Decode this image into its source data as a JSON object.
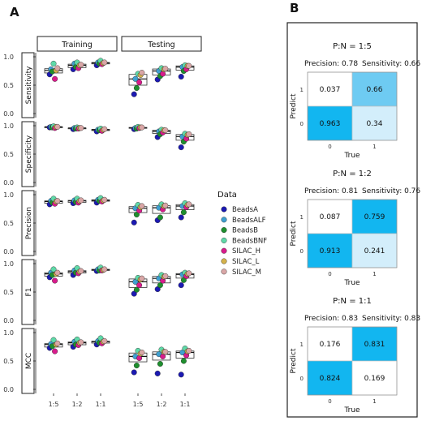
{
  "panel_a_label": "A",
  "panel_b_label": "B",
  "chart_data": [
    {
      "type": "scatter",
      "facet_columns": [
        "Training",
        "Testing"
      ],
      "facet_rows": [
        "Sensitivity",
        "Specificity",
        "Precision",
        "F1",
        "MCC"
      ],
      "categories": [
        "1:5",
        "1:2",
        "1:1"
      ],
      "ylim": [
        0,
        1
      ],
      "yticks": [
        "0.0",
        "0.5",
        "1.0"
      ],
      "legend": {
        "title": "Data",
        "position": "right"
      },
      "series_colors": {
        "BeadsA": "#1c1ab2",
        "BeadsALF": "#3f9fd0",
        "BeadsB": "#1e8f2e",
        "BeadsBNF": "#5fd9a8",
        "SILAC_H": "#d81b8c",
        "SILAC_L": "#d4b24c",
        "SILAC_M": "#d9a6a6"
      },
      "series": [
        {
          "name": "BeadsA",
          "values": {
            "Sensitivity": {
              "Training": [
                0.69,
                0.78,
                0.85
              ],
              "Testing": [
                0.34,
                0.6,
                0.65
              ]
            },
            "Specificity": {
              "Training": [
                0.97,
                0.94,
                0.9
              ],
              "Testing": [
                0.94,
                0.8,
                0.62
              ]
            },
            "Precision": {
              "Training": [
                0.83,
                0.85,
                0.86
              ],
              "Testing": [
                0.51,
                0.55,
                0.6
              ]
            },
            "F1": {
              "Training": [
                0.76,
                0.8,
                0.87
              ],
              "Testing": [
                0.47,
                0.55,
                0.62
              ]
            },
            "MCC": {
              "Training": [
                0.73,
                0.75,
                0.79
              ],
              "Testing": [
                0.3,
                0.28,
                0.26
              ]
            }
          }
        },
        {
          "name": "BeadsALF",
          "values": {
            "Sensitivity": {
              "Training": [
                0.78,
                0.88,
                0.9
              ],
              "Testing": [
                0.61,
                0.75,
                0.82
              ]
            },
            "Specificity": {
              "Training": [
                0.98,
                0.96,
                0.93
              ],
              "Testing": [
                0.96,
                0.9,
                0.81
              ]
            },
            "Precision": {
              "Training": [
                0.89,
                0.9,
                0.91
              ],
              "Testing": [
                0.76,
                0.77,
                0.8
              ]
            },
            "F1": {
              "Training": [
                0.84,
                0.88,
                0.9
              ],
              "Testing": [
                0.68,
                0.74,
                0.81
              ]
            },
            "MCC": {
              "Training": [
                0.8,
                0.84,
                0.85
              ],
              "Testing": [
                0.58,
                0.62,
                0.65
              ]
            }
          }
        },
        {
          "name": "BeadsB",
          "values": {
            "Sensitivity": {
              "Training": [
                0.74,
                0.82,
                0.88
              ],
              "Testing": [
                0.45,
                0.66,
                0.75
              ]
            },
            "Specificity": {
              "Training": [
                0.97,
                0.95,
                0.92
              ],
              "Testing": [
                0.95,
                0.85,
                0.72
              ]
            },
            "Precision": {
              "Training": [
                0.86,
                0.87,
                0.89
              ],
              "Testing": [
                0.65,
                0.6,
                0.69
              ]
            },
            "F1": {
              "Training": [
                0.8,
                0.84,
                0.88
              ],
              "Testing": [
                0.54,
                0.62,
                0.71
              ]
            },
            "MCC": {
              "Training": [
                0.76,
                0.79,
                0.82
              ],
              "Testing": [
                0.42,
                0.45,
                0.5
              ]
            }
          }
        },
        {
          "name": "BeadsBNF",
          "values": {
            "Sensitivity": {
              "Training": [
                0.88,
                0.9,
                0.93
              ],
              "Testing": [
                0.7,
                0.8,
                0.85
              ]
            },
            "Specificity": {
              "Training": [
                0.99,
                0.97,
                0.95
              ],
              "Testing": [
                0.98,
                0.93,
                0.86
              ]
            },
            "Precision": {
              "Training": [
                0.93,
                0.93,
                0.94
              ],
              "Testing": [
                0.82,
                0.83,
                0.85
              ]
            },
            "F1": {
              "Training": [
                0.9,
                0.92,
                0.93
              ],
              "Testing": [
                0.75,
                0.8,
                0.84
              ]
            },
            "MCC": {
              "Training": [
                0.87,
                0.88,
                0.9
              ],
              "Testing": [
                0.68,
                0.7,
                0.72
              ]
            }
          }
        },
        {
          "name": "SILAC_H",
          "values": {
            "Sensitivity": {
              "Training": [
                0.61,
                0.8,
                0.87
              ],
              "Testing": [
                0.55,
                0.7,
                0.78
              ]
            },
            "Specificity": {
              "Training": [
                0.96,
                0.95,
                0.91
              ],
              "Testing": [
                0.96,
                0.88,
                0.77
              ]
            },
            "Precision": {
              "Training": [
                0.84,
                0.86,
                0.88
              ],
              "Testing": [
                0.72,
                0.74,
                0.78
              ]
            },
            "F1": {
              "Training": [
                0.7,
                0.83,
                0.88
              ],
              "Testing": [
                0.62,
                0.7,
                0.78
              ]
            },
            "MCC": {
              "Training": [
                0.67,
                0.78,
                0.81
              ],
              "Testing": [
                0.55,
                0.58,
                0.6
              ]
            }
          }
        },
        {
          "name": "SILAC_L",
          "values": {
            "Sensitivity": {
              "Training": [
                0.76,
                0.85,
                0.89
              ],
              "Testing": [
                0.68,
                0.78,
                0.84
              ]
            },
            "Specificity": {
              "Training": [
                0.98,
                0.96,
                0.93
              ],
              "Testing": [
                0.97,
                0.92,
                0.84
              ]
            },
            "Precision": {
              "Training": [
                0.88,
                0.89,
                0.9
              ],
              "Testing": [
                0.78,
                0.8,
                0.82
              ]
            },
            "F1": {
              "Training": [
                0.82,
                0.86,
                0.89
              ],
              "Testing": [
                0.72,
                0.77,
                0.82
              ]
            },
            "MCC": {
              "Training": [
                0.79,
                0.82,
                0.84
              ],
              "Testing": [
                0.63,
                0.66,
                0.67
              ]
            }
          }
        },
        {
          "name": "SILAC_M",
          "values": {
            "Sensitivity": {
              "Training": [
                0.8,
                0.86,
                0.9
              ],
              "Testing": [
                0.72,
                0.79,
                0.84
              ]
            },
            "Specificity": {
              "Training": [
                0.98,
                0.96,
                0.94
              ],
              "Testing": [
                0.97,
                0.92,
                0.85
              ]
            },
            "Precision": {
              "Training": [
                0.89,
                0.9,
                0.91
              ],
              "Testing": [
                0.8,
                0.81,
                0.83
              ]
            },
            "F1": {
              "Training": [
                0.84,
                0.87,
                0.9
              ],
              "Testing": [
                0.74,
                0.78,
                0.83
              ]
            },
            "MCC": {
              "Training": [
                0.81,
                0.83,
                0.85
              ],
              "Testing": [
                0.65,
                0.66,
                0.68
              ]
            }
          }
        }
      ]
    },
    {
      "type": "heatmap",
      "title": "P:N = 1:5",
      "subtitle_left": "Precision: 0.78",
      "subtitle_right": "Sensitivity: 0.66",
      "xlabel": "True",
      "ylabel": "Predict",
      "xticks": [
        "0",
        "1"
      ],
      "yticks": [
        "0",
        "1"
      ],
      "cells": [
        {
          "true": "0",
          "predict": "1",
          "value": 0.037,
          "label": "0.037"
        },
        {
          "true": "1",
          "predict": "1",
          "value": 0.66,
          "label": "0.66"
        },
        {
          "true": "0",
          "predict": "0",
          "value": 0.963,
          "label": "0.963"
        },
        {
          "true": "1",
          "predict": "0",
          "value": 0.34,
          "label": "0.34"
        }
      ]
    },
    {
      "type": "heatmap",
      "title": "P:N = 1:2",
      "subtitle_left": "Precision: 0.81",
      "subtitle_right": "Sensitivity: 0.76",
      "xlabel": "True",
      "ylabel": "Predict",
      "xticks": [
        "0",
        "1"
      ],
      "yticks": [
        "0",
        "1"
      ],
      "cells": [
        {
          "true": "0",
          "predict": "1",
          "value": 0.087,
          "label": "0.087"
        },
        {
          "true": "1",
          "predict": "1",
          "value": 0.759,
          "label": "0.759"
        },
        {
          "true": "0",
          "predict": "0",
          "value": 0.913,
          "label": "0.913"
        },
        {
          "true": "1",
          "predict": "0",
          "value": 0.241,
          "label": "0.241"
        }
      ]
    },
    {
      "type": "heatmap",
      "title": "P:N = 1:1",
      "subtitle_left": "Precision: 0.83",
      "subtitle_right": "Sensitivity: 0.83",
      "xlabel": "True",
      "ylabel": "Predict",
      "xticks": [
        "0",
        "1"
      ],
      "yticks": [
        "0",
        "1"
      ],
      "cells": [
        {
          "true": "0",
          "predict": "1",
          "value": 0.176,
          "label": "0.176"
        },
        {
          "true": "1",
          "predict": "1",
          "value": 0.831,
          "label": "0.831"
        },
        {
          "true": "0",
          "predict": "0",
          "value": 0.824,
          "label": "0.824"
        },
        {
          "true": "1",
          "predict": "0",
          "value": 0.169,
          "label": "0.169"
        }
      ]
    }
  ]
}
